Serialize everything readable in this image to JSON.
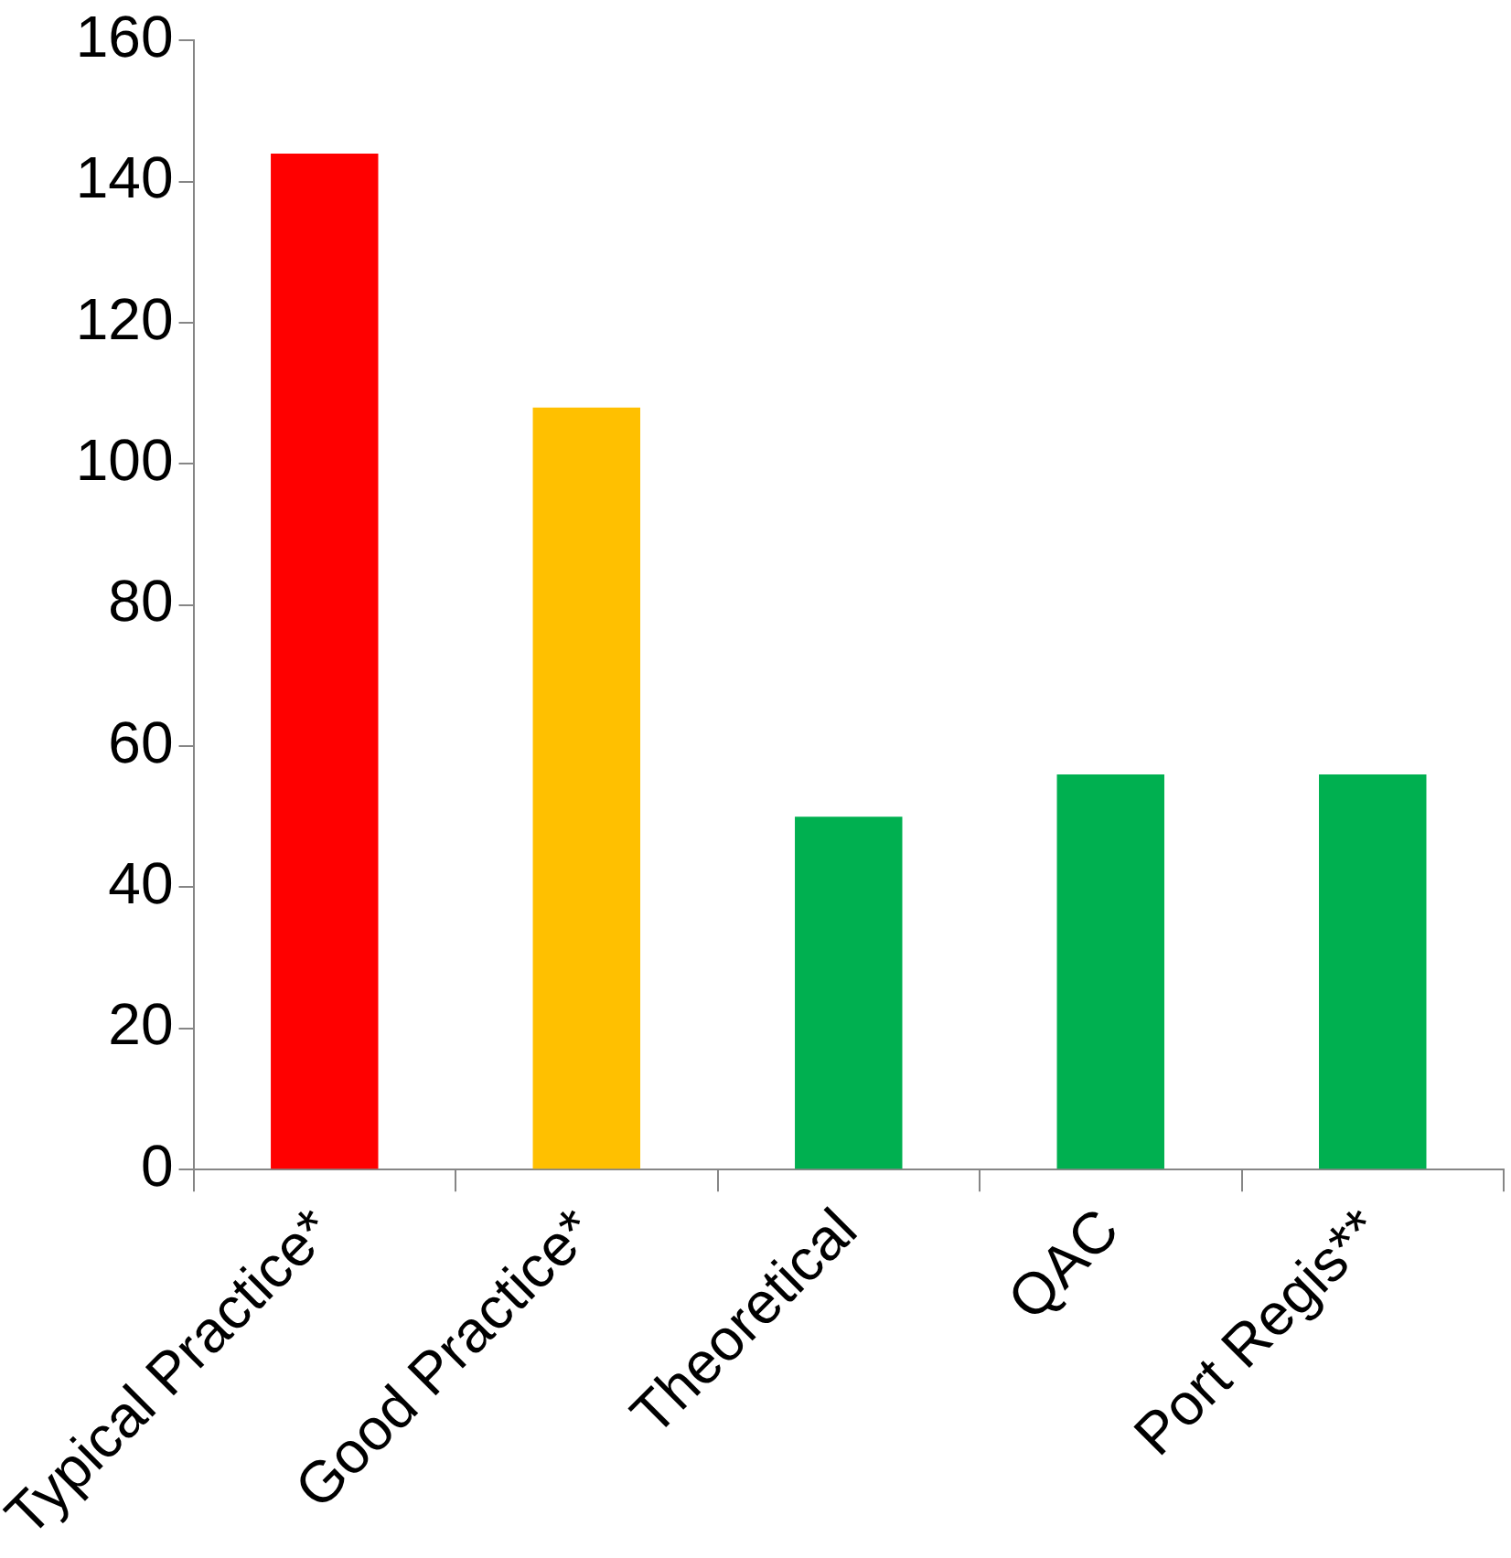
{
  "chart_data": {
    "type": "bar",
    "categories": [
      "Typical Practice*",
      "Good Practice*",
      "Theoretical",
      "QAC",
      "Port Regis**"
    ],
    "values": [
      144,
      108,
      50,
      56,
      56
    ],
    "colors": [
      "#ff0000",
      "#ffc000",
      "#00b050",
      "#00b050",
      "#00b050"
    ],
    "ylim": [
      0,
      160
    ],
    "yticks": [
      0,
      20,
      40,
      60,
      80,
      100,
      120,
      140,
      160
    ],
    "grid": false,
    "legend": false
  }
}
